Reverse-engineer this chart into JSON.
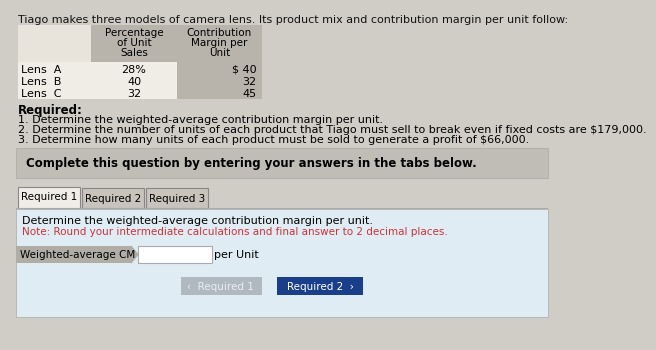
{
  "title": "Tiago makes three models of camera lens. Its product mix and contribution margin per unit follow:",
  "page_bg": "#d0cdc6",
  "table_header_bg": "#b8b4ac",
  "table_row_bg": "#e8e4dc",
  "table_row_bg2": "#f0ece6",
  "table_row_labels": [
    "Lens  A",
    "Lens  B",
    "Lens  C"
  ],
  "table_col1_header_lines": [
    "Percentage",
    "of Unit",
    "Sales"
  ],
  "table_col2_header_lines": [
    "Contribution",
    "Margin per",
    "Unit"
  ],
  "table_col1_values": [
    "28%",
    "40",
    "32"
  ],
  "table_col2_values": [
    "$ 40",
    "32",
    "45"
  ],
  "required_title": "Required:",
  "required_items": [
    "1. Determine the weighted-average contribution margin per unit.",
    "2. Determine the number of units of each product that Tiago must sell to break even if fixed costs are $179,000.",
    "3. Determine how many units of each product must be sold to generate a profit of $66,000."
  ],
  "complete_text": "Complete this question by entering your answers in the tabs below.",
  "complete_bg": "#c0bdb6",
  "tab_active": "Required 1",
  "tab_inactive": [
    "Required 2",
    "Required 3"
  ],
  "tab_active_bg": "#f0ede8",
  "tab_inactive_bg": "#c8c4bc",
  "tab_border": "#888888",
  "content_bg": "#d8e4ec",
  "content_line1": "Determine the weighted-average contribution margin per unit.",
  "content_line2": "Note: Round your intermediate calculations and final answer to 2 decimal places.",
  "content_line2_color": "#cc3333",
  "row_label": "Weighted-average CM",
  "row_label_bg": "#b0ada6",
  "input_box_bg": "#ffffff",
  "per_unit_text": "per Unit",
  "btn_left_text": "‹  Required 1",
  "btn_left_bg": "#b0b8c0",
  "btn_right_text": "Required 2  ›",
  "btn_right_bg": "#1a3f8a",
  "btn_text_color_left": "#e8eef4",
  "btn_text_color_right": "#ffffff",
  "input_border": "#aaaaaa",
  "tab_panel_bg": "#e0ecf4",
  "panel_border": "#aaaaaa"
}
